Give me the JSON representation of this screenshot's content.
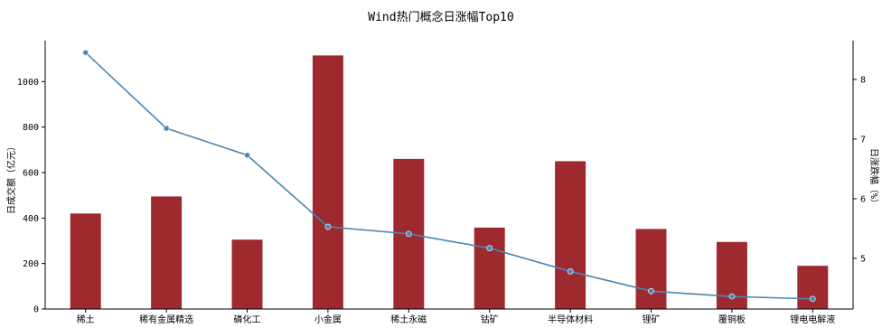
{
  "chart_data": {
    "type": "bar",
    "title": "Wind热门概念日涨幅Top10",
    "ylabel": "日成交额（亿元）",
    "y2label": "日涨跌幅（%）",
    "categories": [
      "稀土",
      "稀有金属精选",
      "磷化工",
      "小金属",
      "稀土永磁",
      "钴矿",
      "半导体材料",
      "锂矿",
      "覆铜板",
      "锂电电解液"
    ],
    "series": [
      {
        "axis": "left",
        "kind": "bar",
        "color": "#9e2a2f",
        "values": [
          420,
          495,
          305,
          1115,
          660,
          358,
          650,
          352,
          295,
          190
        ]
      },
      {
        "axis": "right",
        "kind": "line",
        "color": "#4a86b4",
        "values": [
          8.45,
          7.18,
          6.73,
          5.53,
          5.41,
          5.17,
          4.78,
          4.45,
          4.36,
          4.32
        ]
      }
    ],
    "ylim": [
      0,
      1180
    ],
    "yticks": [
      0,
      200,
      400,
      600,
      800,
      1000
    ],
    "y2lim": [
      4.15,
      8.65
    ],
    "y2ticks": [
      5,
      6,
      7,
      8
    ],
    "grid": false,
    "legend": "none"
  }
}
